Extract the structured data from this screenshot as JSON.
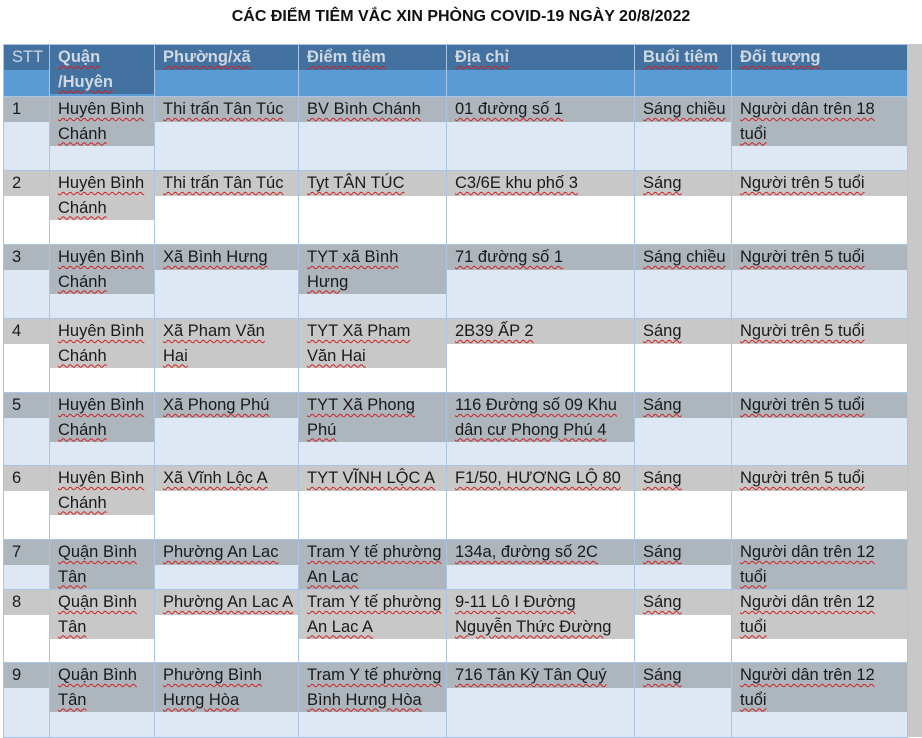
{
  "title": "CÁC ĐIỂM TIÊM VẮC XIN PHÒNG COVID-19 NGÀY 20/8/2022",
  "columns": [
    "STT",
    "Quận /Huyên",
    "Phường/xã",
    "Điểm tiêm",
    "Địa chỉ",
    "Buổi tiêm",
    "Đối tượng"
  ],
  "rows": [
    [
      "1",
      "Huyên Bình Chánh",
      "Thi trấn Tân Túc",
      "BV Bình Chánh",
      "01 đường số 1",
      "Sáng chiều",
      "Người dân trên 18 tuổi"
    ],
    [
      "2",
      "Huyên Bình Chánh",
      "Thi trấn Tân Túc",
      "Tyt TÂN TÚC",
      "C3/6E khu phố 3",
      "Sáng",
      "Người trên  5 tuổi"
    ],
    [
      "3",
      "Huyên Bình Chánh",
      "Xã Bình Hưng",
      "TYT xã Bình Hưng",
      "71 đường số 1",
      "Sáng chiều",
      "Người trên  5 tuổi"
    ],
    [
      "4",
      "Huyên Bình Chánh",
      "Xã Pham Văn Hai",
      "TYT Xã Pham Văn Hai",
      "2B39 ẤP 2",
      "Sáng",
      "Người trên  5 tuổi"
    ],
    [
      "5",
      "Huyên Bình Chánh",
      "Xã Phong Phú",
      "TYT Xã Phong Phú",
      "116 Đường số 09 Khu dân cư Phong Phú 4",
      "Sáng",
      "Người trên  5 tuổi"
    ],
    [
      "6",
      "Huyên Bình Chánh",
      "Xã Vĩnh Lộc A",
      "TYT VĨNH LỘC A",
      "F1/50, HƯƠNG LỘ 80",
      "Sáng",
      "Người trên  5 tuổi"
    ],
    [
      "7",
      "Quận Bình Tân",
      "Phường An Lac",
      "Tram Y tế phường An Lac",
      "134a, đường số 2C",
      "Sáng",
      "Người dân trên 12 tuổi"
    ],
    [
      "8",
      "Quận Bình Tân",
      "Phường An Lac A",
      "Tram Y tế phường An Lac A",
      "9-11 Lô I Đường Nguyễn Thức Đường",
      "Sáng",
      "Người dân trên 12 tuổi"
    ],
    [
      "9",
      "Quận Bình Tân",
      "Phường Bình Hưng Hòa",
      "Tram Y tế phường Bình Hưng Hòa",
      "716 Tân Kỳ Tân Quý",
      "Sáng",
      "Người dân trên 12 tuổi"
    ]
  ]
}
